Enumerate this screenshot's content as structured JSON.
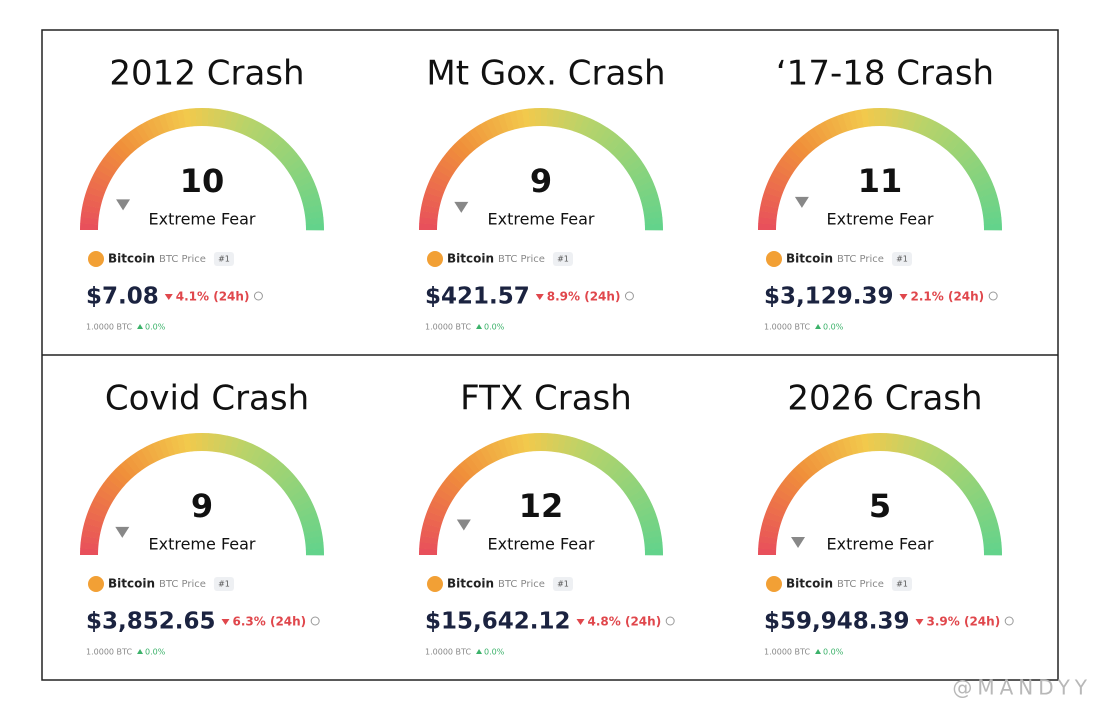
{
  "panels": [
    {
      "title": "2012 Crash",
      "value": 10,
      "label": "Extreme Fear",
      "coin": "Bitcoin",
      "ticker": "BTC Price",
      "rank": "#1",
      "price": "$7.08",
      "change": "4.1% (24h)",
      "btc_amount": "1.0000 BTC",
      "btc_change": "0.0%"
    },
    {
      "title": "Mt Gox. Crash",
      "value": 9,
      "label": "Extreme Fear",
      "coin": "Bitcoin",
      "ticker": "BTC Price",
      "rank": "#1",
      "price": "$421.57",
      "change": "8.9% (24h)",
      "btc_amount": "1.0000 BTC",
      "btc_change": "0.0%"
    },
    {
      "title": "‘17-18 Crash",
      "value": 11,
      "label": "Extreme Fear",
      "coin": "Bitcoin",
      "ticker": "BTC Price",
      "rank": "#1",
      "price": "$3,129.39",
      "change": "2.1% (24h)",
      "btc_amount": "1.0000 BTC",
      "btc_change": "0.0%"
    },
    {
      "title": "Covid Crash",
      "value": 9,
      "label": "Extreme Fear",
      "coin": "Bitcoin",
      "ticker": "BTC Price",
      "rank": "#1",
      "price": "$3,852.65",
      "change": "6.3% (24h)",
      "btc_amount": "1.0000 BTC",
      "btc_change": "0.0%"
    },
    {
      "title": "FTX Crash",
      "value": 12,
      "label": "Extreme Fear",
      "coin": "Bitcoin",
      "ticker": "BTC Price",
      "rank": "#1",
      "price": "$15,642.12",
      "change": "4.8% (24h)",
      "btc_amount": "1.0000 BTC",
      "btc_change": "0.0%"
    },
    {
      "title": "2026 Crash",
      "value": 5,
      "label": "Extreme Fear",
      "coin": "Bitcoin",
      "ticker": "BTC Price",
      "rank": "#1",
      "price": "$59,948.39",
      "change": "3.9% (24h)",
      "btc_amount": "1.0000 BTC",
      "btc_change": "0.0%"
    }
  ],
  "watermark": "@MANDYY"
}
